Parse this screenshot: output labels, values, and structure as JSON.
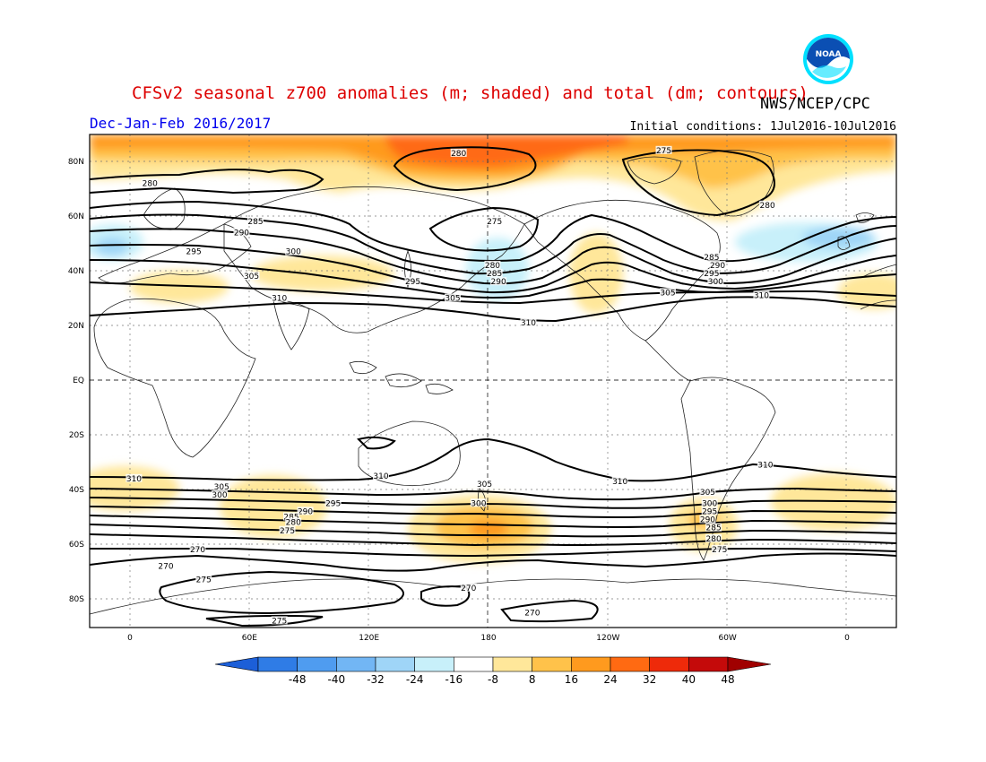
{
  "title": "CFSv2 seasonal z700 anomalies (m; shaded) and total (dm; contours)",
  "agency": "NWS/NCEP/CPC",
  "season": "Dec-Jan-Feb 2016/2017",
  "init_conditions": "Initial conditions: 1Jul2016-10Jul2016",
  "logo_text": "NOAA",
  "colors": {
    "title": "#dd0000",
    "season": "#0000ee",
    "logo_blue": "#0b4fb3",
    "logo_ring": "#00e0ff"
  },
  "map": {
    "lat_labels": [
      "80N",
      "60N",
      "40N",
      "20N",
      "EQ",
      "20S",
      "40S",
      "60S",
      "80S"
    ],
    "lon_labels": [
      "0",
      "60E",
      "120E",
      "180",
      "120W",
      "60W",
      "0"
    ]
  },
  "colorbar": {
    "labels": [
      "-48",
      "-40",
      "-32",
      "-24",
      "-16",
      "-8",
      "8",
      "16",
      "24",
      "32",
      "40",
      "48"
    ],
    "colors": [
      "#1c5fd8",
      "#2f7ce6",
      "#4f9cf0",
      "#72b6f4",
      "#9fd5f7",
      "#c8f0fa",
      "#ffffff",
      "#ffe79a",
      "#ffc24a",
      "#ff9a1e",
      "#ff6a12",
      "#ee2a0a",
      "#c40a0a",
      "#a00000"
    ]
  },
  "contour_labels": [
    {
      "text": "280",
      "lat": 83,
      "lon": 165
    },
    {
      "text": "275",
      "lat": 84,
      "lon": -92
    },
    {
      "text": "280",
      "lat": 72,
      "lon": 10
    },
    {
      "text": "280",
      "lat": 64,
      "lon": -40
    },
    {
      "text": "285",
      "lat": 58,
      "lon": 63
    },
    {
      "text": "290",
      "lat": 54,
      "lon": 56
    },
    {
      "text": "275",
      "lat": 58,
      "lon": 183
    },
    {
      "text": "295",
      "lat": 47,
      "lon": 32
    },
    {
      "text": "300",
      "lat": 47,
      "lon": 82
    },
    {
      "text": "280",
      "lat": 42,
      "lon": 182
    },
    {
      "text": "285",
      "lat": 39,
      "lon": 183
    },
    {
      "text": "290",
      "lat": 36,
      "lon": 185
    },
    {
      "text": "285",
      "lat": 45,
      "lon": -68
    },
    {
      "text": "290",
      "lat": 42,
      "lon": -65
    },
    {
      "text": "295",
      "lat": 39,
      "lon": -68
    },
    {
      "text": "300",
      "lat": 36,
      "lon": -66
    },
    {
      "text": "305",
      "lat": 38,
      "lon": 61
    },
    {
      "text": "295",
      "lat": 36,
      "lon": 142
    },
    {
      "text": "305",
      "lat": 30,
      "lon": 162
    },
    {
      "text": "305",
      "lat": 32,
      "lon": -90
    },
    {
      "text": "310",
      "lat": 30,
      "lon": 75
    },
    {
      "text": "310",
      "lat": 31,
      "lon": -43
    },
    {
      "text": "310",
      "lat": 21,
      "lon": 200
    },
    {
      "text": "310",
      "lat": -36,
      "lon": 2
    },
    {
      "text": "310",
      "lat": -35,
      "lon": 126
    },
    {
      "text": "310",
      "lat": -37,
      "lon": -114
    },
    {
      "text": "310",
      "lat": -31,
      "lon": -41
    },
    {
      "text": "305",
      "lat": -39,
      "lon": 46
    },
    {
      "text": "300",
      "lat": -42,
      "lon": 45
    },
    {
      "text": "295",
      "lat": -45,
      "lon": 102
    },
    {
      "text": "290",
      "lat": -48,
      "lon": 88
    },
    {
      "text": "285",
      "lat": -50,
      "lon": 81
    },
    {
      "text": "280",
      "lat": -52,
      "lon": 82
    },
    {
      "text": "275",
      "lat": -55,
      "lon": 79
    },
    {
      "text": "305",
      "lat": -38,
      "lon": 178
    },
    {
      "text": "300",
      "lat": -45,
      "lon": 175
    },
    {
      "text": "305",
      "lat": -41,
      "lon": -70
    },
    {
      "text": "300",
      "lat": -45,
      "lon": -69
    },
    {
      "text": "295",
      "lat": -48,
      "lon": -69
    },
    {
      "text": "290",
      "lat": -51,
      "lon": -70
    },
    {
      "text": "285",
      "lat": -54,
      "lon": -67
    },
    {
      "text": "280",
      "lat": -58,
      "lon": -67
    },
    {
      "text": "275",
      "lat": -62,
      "lon": -64
    },
    {
      "text": "270",
      "lat": -62,
      "lon": 34
    },
    {
      "text": "270",
      "lat": -68,
      "lon": 18
    },
    {
      "text": "275",
      "lat": -73,
      "lon": 37
    },
    {
      "text": "270",
      "lat": -76,
      "lon": 170
    },
    {
      "text": "270",
      "lat": -85,
      "lon": 202
    },
    {
      "text": "275",
      "lat": -88,
      "lon": 75
    }
  ]
}
